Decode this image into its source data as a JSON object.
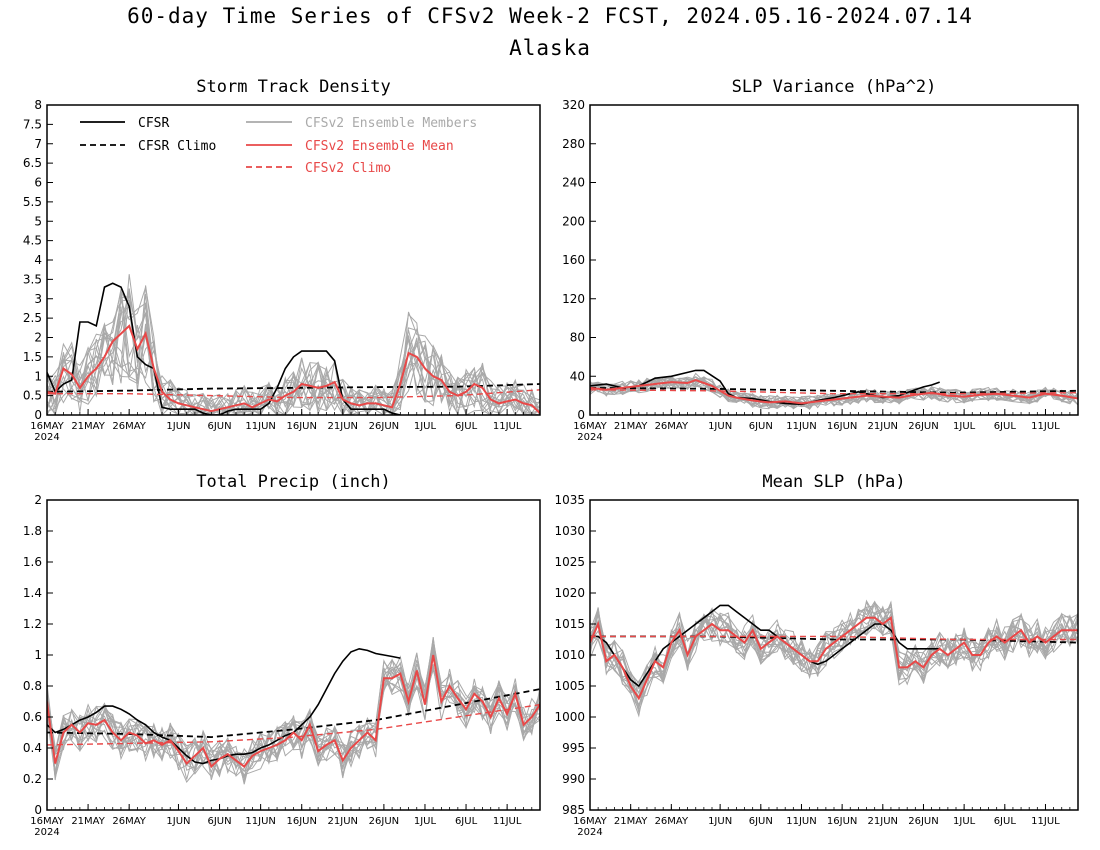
{
  "title": "60-day Time Series of CFSv2 Week-2 FCST, 2024.05.16-2024.07.14",
  "subtitle": "Alaska",
  "legend": {
    "cfsr": "CFSR",
    "cfsr_climo": "CFSR Climo",
    "members": "CFSv2 Ensemble Members",
    "mean": "CFSv2 Ensemble Mean",
    "climo": "CFSv2 Climo"
  },
  "colors": {
    "cfsr": "#000000",
    "members": "#a9a9a9",
    "mean": "#e84848",
    "climo": "#e84848"
  },
  "x_tick_labels": [
    "16MAY",
    "21MAY",
    "26MAY",
    "1JUN",
    "6JUN",
    "11JUN",
    "16JUN",
    "21JUN",
    "26JUN",
    "1JUL",
    "6JUL",
    "11JUL"
  ],
  "x_tick_days": [
    0,
    5,
    10,
    16,
    21,
    26,
    31,
    36,
    41,
    46,
    51,
    56
  ],
  "year_label": "2024",
  "chart_data": [
    {
      "type": "line",
      "title": "Storm Track Density",
      "ylim": [
        0,
        8
      ],
      "yticks": [
        0,
        0.5,
        1,
        1.5,
        2,
        2.5,
        3,
        3.5,
        4,
        4.5,
        5,
        5.5,
        6,
        6.5,
        7,
        7.5,
        8
      ],
      "x_days": 60,
      "series": [
        {
          "name": "CFSR",
          "style": "solid-black",
          "x": [
            0,
            1,
            2,
            3,
            4,
            5,
            6,
            7,
            8,
            9,
            10,
            11,
            12,
            13,
            14,
            15,
            16,
            17,
            18,
            19,
            20,
            21,
            22,
            23,
            24,
            25,
            26,
            27,
            28,
            29,
            30,
            31,
            32,
            33,
            34,
            35,
            36,
            37,
            38,
            39,
            40,
            41,
            42,
            43
          ],
          "values": [
            1.1,
            0.6,
            0.8,
            0.9,
            2.4,
            2.4,
            2.3,
            3.3,
            3.4,
            3.3,
            2.8,
            1.5,
            1.3,
            1.2,
            0.2,
            0.15,
            0.15,
            0.15,
            0.15,
            0.05,
            0,
            0,
            0.1,
            0.15,
            0.15,
            0.15,
            0.15,
            0.3,
            0.7,
            1.2,
            1.5,
            1.65,
            1.65,
            1.65,
            1.65,
            1.4,
            0.4,
            0.15,
            0.15,
            0.15,
            0.15,
            0.15,
            0.05,
            0
          ]
        },
        {
          "name": "CFSR Climo",
          "style": "dashed-black",
          "x": [
            0,
            10,
            20,
            30,
            40,
            50,
            60
          ],
          "values": [
            0.6,
            0.63,
            0.68,
            0.7,
            0.72,
            0.73,
            0.8
          ]
        },
        {
          "name": "CFSv2 Ensemble Mean",
          "style": "solid-red",
          "x": [
            0,
            1,
            2,
            3,
            4,
            5,
            6,
            7,
            8,
            9,
            10,
            11,
            12,
            13,
            14,
            15,
            16,
            17,
            18,
            19,
            20,
            21,
            22,
            23,
            24,
            25,
            26,
            27,
            28,
            29,
            30,
            31,
            32,
            33,
            34,
            35,
            36,
            37,
            38,
            39,
            40,
            41,
            42,
            43,
            44,
            45,
            46,
            47,
            48,
            49,
            50,
            51,
            52,
            53,
            54,
            55,
            56,
            57,
            58,
            59,
            60
          ],
          "values": [
            0.6,
            0.55,
            1.2,
            1.05,
            0.7,
            1.0,
            1.2,
            1.5,
            1.9,
            2.1,
            2.3,
            1.7,
            2.1,
            1.2,
            0.6,
            0.4,
            0.3,
            0.25,
            0.2,
            0.15,
            0.1,
            0.15,
            0.2,
            0.25,
            0.3,
            0.2,
            0.3,
            0.4,
            0.35,
            0.5,
            0.6,
            0.8,
            0.75,
            0.7,
            0.75,
            0.85,
            0.4,
            0.3,
            0.25,
            0.3,
            0.3,
            0.25,
            0.2,
            0.8,
            1.6,
            1.5,
            1.2,
            1.0,
            0.9,
            0.6,
            0.5,
            0.6,
            0.8,
            0.7,
            0.4,
            0.3,
            0.35,
            0.4,
            0.3,
            0.25,
            0.05
          ]
        },
        {
          "name": "CFSv2 Climo",
          "style": "dashed-red",
          "x": [
            0,
            10,
            20,
            30,
            40,
            50,
            60
          ],
          "values": [
            0.55,
            0.55,
            0.5,
            0.45,
            0.45,
            0.5,
            0.65
          ]
        }
      ]
    },
    {
      "type": "line",
      "title": "SLP Variance (hPa^2)",
      "ylim": [
        0,
        320
      ],
      "yticks": [
        0,
        40,
        80,
        120,
        160,
        200,
        240,
        280,
        320
      ],
      "x_days": 60,
      "series": [
        {
          "name": "CFSR",
          "style": "solid-black",
          "x": [
            0,
            2,
            4,
            6,
            7,
            8,
            10,
            12,
            13,
            14,
            16,
            17,
            18,
            20,
            22,
            24,
            26,
            28,
            30,
            32,
            33,
            34,
            36,
            38,
            40,
            41,
            42,
            43
          ],
          "values": [
            30,
            32,
            28,
            30,
            34,
            38,
            40,
            44,
            46,
            46,
            35,
            22,
            18,
            17,
            14,
            12,
            11,
            15,
            18,
            22,
            24,
            22,
            18,
            20,
            26,
            29,
            31,
            34
          ]
        },
        {
          "name": "CFSR Climo",
          "style": "dashed-black",
          "x": [
            0,
            15,
            30,
            45,
            60
          ],
          "values": [
            28,
            27,
            25,
            23,
            25
          ]
        },
        {
          "name": "CFSv2 Ensemble Mean",
          "style": "solid-red",
          "x": [
            0,
            2,
            4,
            6,
            8,
            10,
            12,
            13,
            14,
            15,
            16,
            17,
            18,
            20,
            22,
            24,
            26,
            28,
            30,
            32,
            34,
            36,
            38,
            40,
            42,
            44,
            46,
            48,
            50,
            52,
            54,
            56,
            58,
            60
          ],
          "values": [
            28,
            26,
            28,
            30,
            32,
            34,
            33,
            36,
            33,
            30,
            25,
            20,
            18,
            15,
            13,
            14,
            12,
            14,
            16,
            18,
            20,
            19,
            18,
            21,
            23,
            20,
            19,
            21,
            22,
            20,
            18,
            22,
            20,
            17
          ]
        },
        {
          "name": "CFSv2 Climo",
          "style": "dashed-red",
          "x": [
            0,
            15,
            30,
            45,
            60
          ],
          "values": [
            26,
            25,
            22,
            22,
            23
          ]
        }
      ]
    },
    {
      "type": "line",
      "title": "Total Precip (inch)",
      "ylim": [
        0,
        2
      ],
      "yticks": [
        0,
        0.2,
        0.4,
        0.6,
        0.8,
        1,
        1.2,
        1.4,
        1.6,
        1.8,
        2
      ],
      "x_days": 60,
      "series": [
        {
          "name": "CFSR",
          "style": "solid-black",
          "x": [
            0,
            1,
            2,
            3,
            4,
            5,
            6,
            7,
            8,
            9,
            10,
            11,
            12,
            13,
            14,
            15,
            16,
            17,
            18,
            19,
            20,
            21,
            22,
            23,
            24,
            25,
            26,
            27,
            28,
            29,
            30,
            31,
            32,
            33,
            34,
            35,
            36,
            37,
            38,
            39,
            40,
            41,
            42,
            43
          ],
          "values": [
            0.55,
            0.5,
            0.52,
            0.55,
            0.58,
            0.6,
            0.63,
            0.67,
            0.67,
            0.65,
            0.62,
            0.58,
            0.55,
            0.5,
            0.47,
            0.45,
            0.4,
            0.35,
            0.31,
            0.3,
            0.32,
            0.33,
            0.35,
            0.36,
            0.36,
            0.37,
            0.4,
            0.42,
            0.45,
            0.48,
            0.5,
            0.55,
            0.6,
            0.68,
            0.78,
            0.88,
            0.96,
            1.02,
            1.04,
            1.03,
            1.01,
            1.0,
            0.99,
            0.98
          ]
        },
        {
          "name": "CFSR Climo",
          "style": "dashed-black",
          "x": [
            0,
            10,
            20,
            30,
            40,
            50,
            60
          ],
          "values": [
            0.5,
            0.49,
            0.47,
            0.52,
            0.58,
            0.68,
            0.78
          ]
        },
        {
          "name": "CFSv2 Ensemble Mean",
          "style": "solid-red",
          "x": [
            0,
            1,
            2,
            3,
            4,
            5,
            6,
            7,
            8,
            9,
            10,
            11,
            12,
            13,
            14,
            15,
            16,
            17,
            18,
            19,
            20,
            21,
            22,
            23,
            24,
            25,
            26,
            27,
            28,
            29,
            30,
            31,
            32,
            33,
            34,
            35,
            36,
            37,
            38,
            39,
            40,
            41,
            42,
            43,
            44,
            45,
            46,
            47,
            48,
            49,
            50,
            51,
            52,
            53,
            54,
            55,
            56,
            57,
            58,
            59,
            60
          ],
          "values": [
            0.7,
            0.3,
            0.5,
            0.55,
            0.5,
            0.56,
            0.55,
            0.58,
            0.5,
            0.45,
            0.5,
            0.48,
            0.43,
            0.45,
            0.42,
            0.45,
            0.38,
            0.3,
            0.35,
            0.4,
            0.28,
            0.33,
            0.36,
            0.32,
            0.28,
            0.35,
            0.38,
            0.4,
            0.42,
            0.45,
            0.5,
            0.45,
            0.55,
            0.38,
            0.42,
            0.45,
            0.32,
            0.4,
            0.45,
            0.5,
            0.45,
            0.85,
            0.85,
            0.88,
            0.7,
            0.9,
            0.68,
            1.0,
            0.7,
            0.8,
            0.72,
            0.65,
            0.75,
            0.7,
            0.6,
            0.72,
            0.62,
            0.75,
            0.55,
            0.6,
            0.68
          ]
        },
        {
          "name": "CFSv2 Climo",
          "style": "dashed-red",
          "x": [
            0,
            10,
            20,
            30,
            40,
            50,
            60
          ],
          "values": [
            0.42,
            0.43,
            0.44,
            0.47,
            0.52,
            0.6,
            0.68
          ]
        }
      ]
    },
    {
      "type": "line",
      "title": "Mean SLP (hPa)",
      "ylim": [
        985,
        1035
      ],
      "yticks": [
        985,
        990,
        995,
        1000,
        1005,
        1010,
        1015,
        1020,
        1025,
        1030,
        1035
      ],
      "x_days": 60,
      "series": [
        {
          "name": "CFSR",
          "style": "solid-black",
          "x": [
            0,
            1,
            2,
            3,
            4,
            5,
            6,
            7,
            8,
            9,
            10,
            11,
            12,
            13,
            14,
            15,
            16,
            17,
            18,
            19,
            20,
            21,
            22,
            23,
            24,
            25,
            26,
            27,
            28,
            29,
            30,
            31,
            32,
            33,
            34,
            35,
            36,
            37,
            38,
            39,
            40,
            41,
            42,
            43
          ],
          "values": [
            1013,
            1013,
            1012,
            1010,
            1008,
            1006,
            1005,
            1007,
            1009,
            1011,
            1012,
            1013,
            1014,
            1015,
            1016,
            1017,
            1018,
            1018,
            1017,
            1016,
            1015,
            1014,
            1014,
            1013,
            1012,
            1011,
            1010,
            1009,
            1008.5,
            1009,
            1010,
            1011,
            1012,
            1013,
            1014,
            1015,
            1015,
            1014,
            1012,
            1011,
            1011,
            1011,
            1011,
            1011
          ]
        },
        {
          "name": "CFSR Climo",
          "style": "dashed-black",
          "x": [
            0,
            15,
            30,
            45,
            60
          ],
          "values": [
            1013,
            1013,
            1012.5,
            1012.5,
            1012
          ]
        },
        {
          "name": "CFSv2 Ensemble Mean",
          "style": "solid-red",
          "x": [
            0,
            1,
            2,
            3,
            4,
            5,
            6,
            7,
            8,
            9,
            10,
            11,
            12,
            13,
            14,
            15,
            16,
            17,
            18,
            19,
            20,
            21,
            22,
            23,
            24,
            25,
            26,
            27,
            28,
            29,
            30,
            31,
            32,
            33,
            34,
            35,
            36,
            37,
            38,
            39,
            40,
            41,
            42,
            43,
            44,
            45,
            46,
            47,
            48,
            49,
            50,
            51,
            52,
            53,
            54,
            55,
            56,
            57,
            58,
            59,
            60
          ],
          "values": [
            1012,
            1015,
            1009,
            1010,
            1008,
            1005,
            1003,
            1006,
            1009,
            1008,
            1012,
            1014,
            1010,
            1013,
            1014,
            1015,
            1014,
            1014,
            1013,
            1012,
            1014,
            1011,
            1012,
            1013,
            1012,
            1011,
            1010,
            1009,
            1009,
            1011,
            1012,
            1013,
            1014,
            1015,
            1016,
            1016,
            1015,
            1016,
            1008,
            1008,
            1009,
            1008,
            1010,
            1011,
            1010,
            1011,
            1012,
            1010,
            1010,
            1012,
            1013,
            1012,
            1013,
            1014,
            1012,
            1013,
            1012,
            1013,
            1014,
            1014,
            1014
          ]
        },
        {
          "name": "CFSv2 Climo",
          "style": "dashed-red",
          "x": [
            0,
            15,
            30,
            45,
            60
          ],
          "values": [
            1013,
            1013,
            1013,
            1012.5,
            1012.5
          ]
        }
      ]
    }
  ]
}
